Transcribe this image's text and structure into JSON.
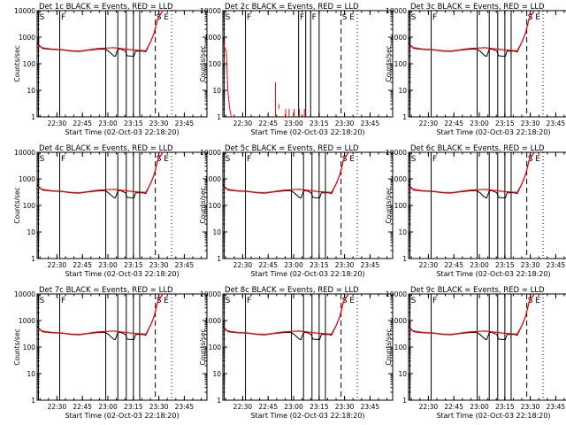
{
  "chart_data": [
    {
      "type": "line",
      "title": "Det  1c BLACK = Events, RED = LLD",
      "xlabel": "Start Time (02-Oct-03 22:18:20)",
      "ylabel": "Counts/sec",
      "x_ticks": [
        "22:30",
        "22:45",
        "23:00",
        "23:15",
        "23:30",
        "23:45"
      ],
      "y_ticks": [
        "1",
        "10",
        "100",
        "1000",
        "10000"
      ],
      "y_scale": "log",
      "ylim": [
        1,
        10000
      ],
      "letters": [
        "S",
        "F",
        "S",
        "E"
      ],
      "line_colors": {
        "events": "#000000",
        "lld": "#ff0000"
      }
    },
    {
      "type": "line",
      "title": "Det  2c BLACK = Events, RED = LLD",
      "xlabel": "Start Time (02-Oct-03 22:18:20)",
      "ylabel": "Counts/sec",
      "x_ticks": [
        "22:30",
        "22:45",
        "23:00",
        "23:15",
        "23:30",
        "23:45"
      ],
      "y_ticks": [
        "1",
        "10",
        "100",
        "1000",
        "10000"
      ],
      "y_scale": "log",
      "ylim": [
        1,
        10000
      ],
      "letters": [
        "S",
        "F",
        "F",
        "F",
        "S",
        "E"
      ],
      "line_colors": {
        "events": "#000000",
        "lld": "#ff0000"
      }
    },
    {
      "type": "line",
      "title": "Det  3c BLACK = Events, RED = LLD",
      "xlabel": "Start Time (02-Oct-03 22:18:20)",
      "ylabel": "Counts/sec",
      "x_ticks": [
        "22:30",
        "22:45",
        "23:00",
        "23:15",
        "23:30",
        "23:45"
      ],
      "y_ticks": [
        "1",
        "10",
        "100",
        "1000",
        "10000"
      ],
      "y_scale": "log",
      "ylim": [
        1,
        10000
      ],
      "letters": [
        "S",
        "F",
        "S",
        "E"
      ],
      "line_colors": {
        "events": "#000000",
        "lld": "#ff0000"
      }
    },
    {
      "type": "line",
      "title": "Det  4c BLACK = Events, RED = LLD",
      "xlabel": "Start Time (02-Oct-03 22:18:20)",
      "ylabel": "Counts/sec",
      "x_ticks": [
        "22:30",
        "22:45",
        "23:00",
        "23:15",
        "23:30",
        "23:45"
      ],
      "y_ticks": [
        "1",
        "10",
        "100",
        "1000",
        "10000"
      ],
      "y_scale": "log",
      "ylim": [
        1,
        10000
      ],
      "letters": [
        "S",
        "F",
        "S",
        "E"
      ],
      "line_colors": {
        "events": "#000000",
        "lld": "#ff0000"
      }
    },
    {
      "type": "line",
      "title": "Det  5c BLACK = Events, RED = LLD",
      "xlabel": "Start Time (02-Oct-03 22:18:20)",
      "ylabel": "Counts/sec",
      "x_ticks": [
        "22:30",
        "22:45",
        "23:00",
        "23:15",
        "23:30",
        "23:45"
      ],
      "y_ticks": [
        "1",
        "10",
        "100",
        "1000",
        "10000"
      ],
      "y_scale": "log",
      "ylim": [
        1,
        10000
      ],
      "letters": [
        "S",
        "F",
        "S",
        "E"
      ],
      "line_colors": {
        "events": "#000000",
        "lld": "#ff0000"
      }
    },
    {
      "type": "line",
      "title": "Det  6c BLACK = Events, RED = LLD",
      "xlabel": "Start Time (02-Oct-03 22:18:20)",
      "ylabel": "Counts/sec",
      "x_ticks": [
        "22:30",
        "22:45",
        "23:00",
        "23:15",
        "23:30",
        "23:45"
      ],
      "y_ticks": [
        "1",
        "10",
        "100",
        "1000",
        "10000"
      ],
      "y_scale": "log",
      "ylim": [
        1,
        10000
      ],
      "letters": [
        "S",
        "F",
        "S",
        "E"
      ],
      "line_colors": {
        "events": "#000000",
        "lld": "#ff0000"
      }
    },
    {
      "type": "line",
      "title": "Det  7c BLACK = Events, RED = LLD",
      "xlabel": "Start Time (02-Oct-03 22:18:20)",
      "ylabel": "Counts/sec",
      "x_ticks": [
        "22:30",
        "22:45",
        "23:00",
        "23:15",
        "23:30",
        "23:45"
      ],
      "y_ticks": [
        "1",
        "10",
        "100",
        "1000",
        "10000"
      ],
      "y_scale": "log",
      "ylim": [
        1,
        10000
      ],
      "letters": [
        "S",
        "F",
        "S",
        "E"
      ],
      "line_colors": {
        "events": "#000000",
        "lld": "#ff0000"
      }
    },
    {
      "type": "line",
      "title": "Det  8c BLACK = Events, RED = LLD",
      "xlabel": "Start Time (02-Oct-03 22:18:20)",
      "ylabel": "Counts/sec",
      "x_ticks": [
        "22:30",
        "22:45",
        "23:00",
        "23:15",
        "23:30",
        "23:45"
      ],
      "y_ticks": [
        "1",
        "10",
        "100",
        "1000",
        "10000"
      ],
      "y_scale": "log",
      "ylim": [
        1,
        10000
      ],
      "letters": [
        "S",
        "F",
        "S",
        "E"
      ],
      "line_colors": {
        "events": "#000000",
        "lld": "#ff0000"
      }
    },
    {
      "type": "line",
      "title": "Det  9c BLACK = Events, RED = LLD",
      "xlabel": "Start Time (02-Oct-03 22:18:20)",
      "ylabel": "Counts/sec",
      "x_ticks": [
        "22:30",
        "22:45",
        "23:00",
        "23:15",
        "23:30",
        "23:45"
      ],
      "y_ticks": [
        "1",
        "10",
        "100",
        "1000",
        "10000"
      ],
      "y_scale": "log",
      "ylim": [
        1,
        10000
      ],
      "letters": [
        "S",
        "F",
        "S",
        "E"
      ],
      "line_colors": {
        "events": "#000000",
        "lld": "#ff0000"
      }
    }
  ]
}
